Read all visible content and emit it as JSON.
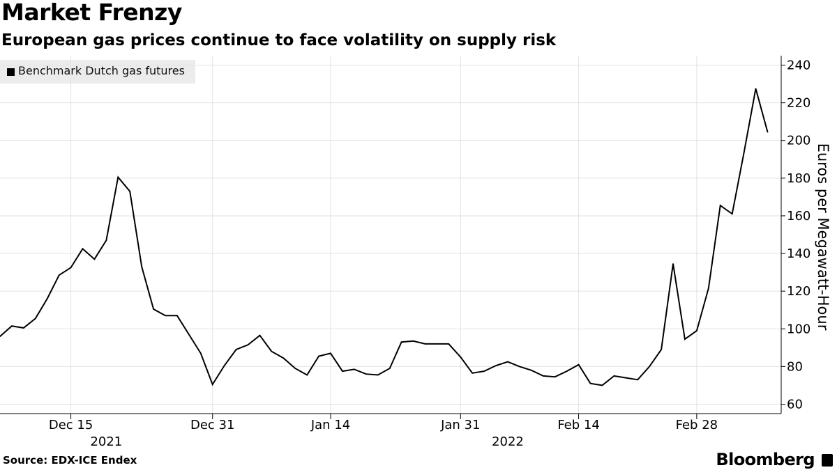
{
  "title": "Market Frenzy",
  "subtitle": "European gas prices continue to face volatility on supply risk",
  "legend": {
    "series_label": "Benchmark Dutch gas futures"
  },
  "source": "Source: EDX-ICE Endex",
  "brand": "Bloomberg",
  "chart_data": {
    "type": "line",
    "title": "Market Frenzy",
    "subtitle": "European gas prices continue to face volatility on supply risk",
    "xlabel": "",
    "ylabel": "Euros per Megawatt-Hour",
    "ylim": [
      55,
      245
    ],
    "yticks": [
      60,
      80,
      100,
      120,
      140,
      160,
      180,
      200,
      220,
      240
    ],
    "grid": true,
    "legend_position": "top-left",
    "x_tick_labels": [
      "Dec 15",
      "Dec 31",
      "Jan 14",
      "Jan 31",
      "Feb 14",
      "Feb 28"
    ],
    "x_tick_index": [
      6,
      18,
      28,
      39,
      49,
      59
    ],
    "year_labels": [
      {
        "label": "2021",
        "index": 9
      },
      {
        "label": "2022",
        "index": 43
      }
    ],
    "series": [
      {
        "name": "Benchmark Dutch gas futures",
        "values": [
          96,
          101.5,
          100.5,
          105.5,
          116,
          128.5,
          132.5,
          142.5,
          137,
          147,
          180.5,
          173,
          133,
          110.5,
          107,
          107,
          97,
          87,
          70.5,
          80.5,
          89,
          91.5,
          96.5,
          88,
          84.5,
          79,
          75.5,
          85.5,
          87,
          77.5,
          78.5,
          76,
          75.5,
          79,
          93,
          93.5,
          92,
          92,
          92,
          85,
          76.5,
          77.5,
          80.5,
          82.5,
          80,
          78,
          75,
          74.5,
          77.5,
          81,
          71,
          70,
          75,
          74,
          73,
          80,
          89,
          134.5,
          94.5,
          99,
          121.5,
          165.5,
          161,
          193.5,
          227.5,
          204.5
        ]
      }
    ]
  }
}
